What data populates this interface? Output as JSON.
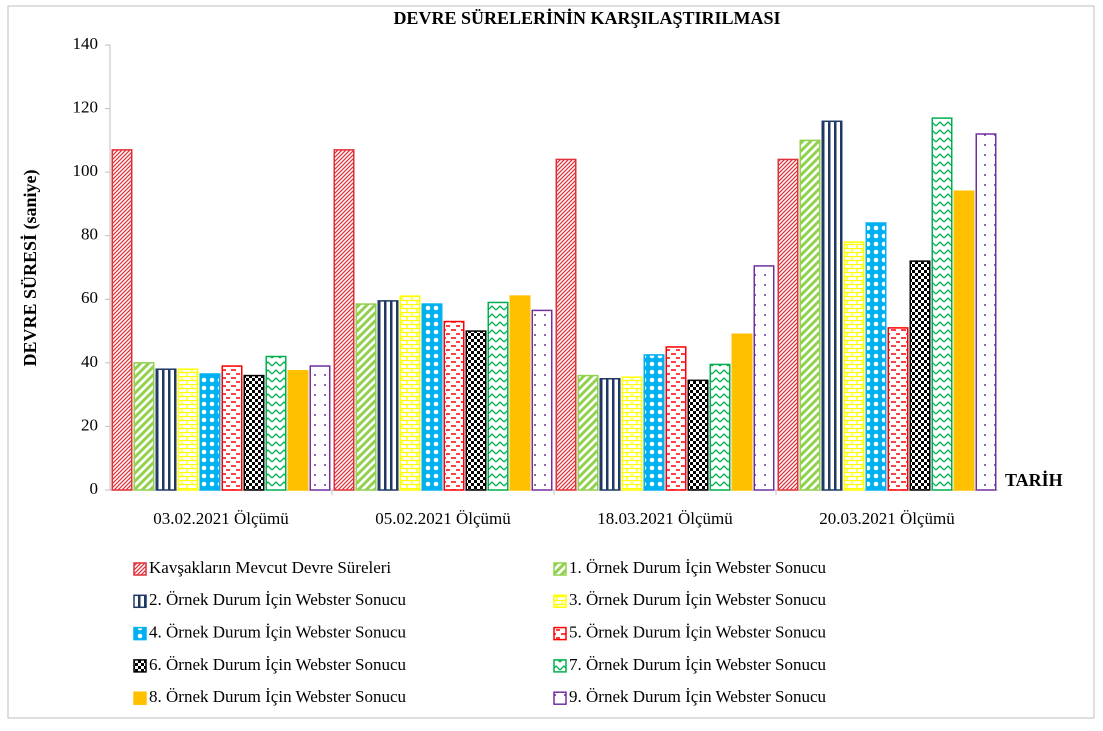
{
  "chart_data": {
    "type": "bar",
    "title": "DEVRE SÜRELERİNİN KARŞILAŞTIRILMASI",
    "y_label": "DEVRE SÜRESİ (saniye)",
    "x_label": "TARİH",
    "categories": [
      "03.02.2021 Ölçümü",
      "05.02.2021 Ölçümü",
      "18.03.2021 Ölçümü",
      "20.03.2021 Ölçümü"
    ],
    "series": [
      {
        "name": "Kavşakların Mevcut Devre Süreleri",
        "color": "#e0303a",
        "values": [
          107,
          107,
          104,
          104
        ]
      },
      {
        "name": "1. Örnek Durum İçin Webster Sonucu",
        "color": "#92d050",
        "values": [
          40,
          58.5,
          36,
          110
        ]
      },
      {
        "name": "2. Örnek Durum İçin Webster Sonucu",
        "color": "#1f3864",
        "values": [
          38,
          59.5,
          35,
          116
        ]
      },
      {
        "name": "3. Örnek Durum İçin Webster Sonucu",
        "color": "#ffff00",
        "values": [
          38,
          61,
          35.5,
          78
        ]
      },
      {
        "name": "4. Örnek Durum İçin Webster Sonucu",
        "color": "#00b0f0",
        "values": [
          36.5,
          58.5,
          42.5,
          84
        ]
      },
      {
        "name": "5. Örnek Durum İçin Webster Sonucu",
        "color": "#ff0000",
        "values": [
          39,
          53,
          45,
          51
        ]
      },
      {
        "name": "6. Örnek Durum İçin Webster Sonucu",
        "color": "#000000",
        "values": [
          36,
          50,
          34.5,
          72
        ]
      },
      {
        "name": "7. Örnek Durum İçin Webster Sonucu",
        "color": "#00b050",
        "values": [
          42,
          59,
          39.5,
          117
        ]
      },
      {
        "name": "8. Örnek Durum İçin Webster Sonucu",
        "color": "#ffc000",
        "values": [
          37.5,
          61,
          49,
          94
        ]
      },
      {
        "name": "9. Örnek Durum İçin Webster Sonucu",
        "color": "#7030a0",
        "values": [
          39,
          56.5,
          70.5,
          112
        ]
      }
    ],
    "ylim": [
      0,
      140
    ],
    "yticks": [
      0,
      20,
      40,
      60,
      80,
      100,
      120,
      140
    ],
    "grid": false,
    "legend": "bottom"
  }
}
